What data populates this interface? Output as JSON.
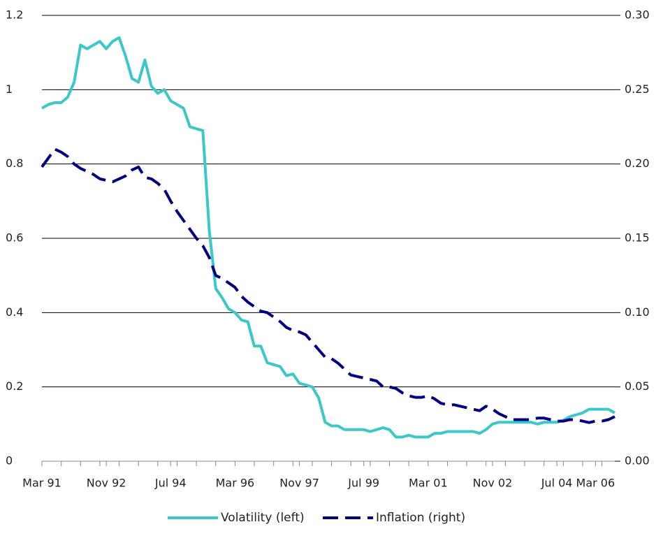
{
  "chart_data": {
    "type": "line",
    "categories": [
      "Mar 91",
      null,
      null,
      null,
      null,
      null,
      null,
      null,
      null,
      null,
      "Nov 92",
      null,
      null,
      null,
      null,
      null,
      null,
      null,
      null,
      null,
      "Jul 94",
      null,
      null,
      null,
      null,
      null,
      null,
      null,
      null,
      null,
      "Mar 96",
      null,
      null,
      null,
      null,
      null,
      null,
      null,
      null,
      null,
      "Nov 97",
      null,
      null,
      null,
      null,
      null,
      null,
      null,
      null,
      null,
      "Jul 99",
      null,
      null,
      null,
      null,
      null,
      null,
      null,
      null,
      null,
      "Mar 01",
      null,
      null,
      null,
      null,
      null,
      null,
      null,
      null,
      null,
      "Nov 02",
      null,
      null,
      null,
      null,
      null,
      null,
      null,
      null,
      null,
      "Jul 04",
      null,
      null,
      null,
      null,
      null,
      "Mar 06",
      null,
      null,
      null
    ],
    "series": [
      {
        "name": "Volatility (left)",
        "color": "#3cc8c8",
        "values": [
          0.95,
          0.96,
          0.965,
          0.965,
          0.98,
          1.02,
          1.12,
          1.11,
          1.12,
          1.13,
          1.11,
          1.13,
          1.14,
          1.09,
          1.03,
          1.02,
          1.08,
          1.01,
          0.99,
          1.0,
          0.97,
          0.96,
          0.95,
          0.9,
          0.895,
          0.89,
          0.62,
          0.465,
          0.44,
          0.41,
          0.4,
          0.38,
          0.375,
          0.31,
          0.31,
          0.265,
          0.26,
          0.255,
          0.23,
          0.235,
          0.21,
          0.205,
          0.2,
          0.17,
          0.105,
          0.095,
          0.095,
          0.085,
          0.085,
          0.085,
          0.085,
          0.08,
          0.085,
          0.09,
          0.085,
          0.065,
          0.065,
          0.07,
          0.065,
          0.065,
          0.065,
          0.075,
          0.075,
          0.08,
          0.08,
          0.08,
          0.08,
          0.08,
          0.075,
          0.085,
          0.1,
          0.105,
          0.105,
          0.105,
          0.105,
          0.105,
          0.105,
          0.1,
          0.105,
          0.105,
          0.105,
          0.11,
          0.12,
          0.125,
          0.13,
          0.14,
          0.14,
          0.14,
          0.14,
          0.13
        ]
      },
      {
        "name": "Inflation (right)",
        "color": "#000080",
        "axis": "y2",
        "dashed": true,
        "values": [
          0.198,
          0.204,
          0.21,
          0.208,
          0.205,
          0.2,
          0.197,
          0.195,
          0.193,
          0.19,
          0.189,
          0.188,
          0.19,
          0.192,
          0.196,
          0.198,
          0.191,
          0.19,
          0.187,
          0.183,
          0.175,
          0.168,
          0.162,
          0.156,
          0.15,
          0.145,
          0.137,
          0.125,
          0.123,
          0.12,
          0.117,
          0.111,
          0.107,
          0.104,
          0.101,
          0.1,
          0.097,
          0.094,
          0.09,
          0.088,
          0.087,
          0.085,
          0.08,
          0.075,
          0.07,
          0.069,
          0.066,
          0.062,
          0.058,
          0.057,
          0.056,
          0.055,
          0.054,
          0.05,
          0.05,
          0.049,
          0.046,
          0.044,
          0.043,
          0.043,
          0.044,
          0.042,
          0.039,
          0.038,
          0.038,
          0.037,
          0.036,
          0.035,
          0.034,
          0.037,
          0.035,
          0.032,
          0.03,
          0.028,
          0.028,
          0.028,
          0.028,
          0.029,
          0.029,
          0.028,
          0.027,
          0.027,
          0.028,
          0.028,
          0.027,
          0.026,
          0.027,
          0.027,
          0.028,
          0.03
        ]
      }
    ],
    "ylim": [
      0,
      1.2
    ],
    "yticks": [
      0,
      0.2,
      0.4,
      0.6,
      0.8,
      1,
      1.2
    ],
    "y2lim": [
      0,
      0.3
    ],
    "y2ticks": [
      {
        "value": 0,
        "label": "0.00"
      },
      {
        "value": 0.05,
        "label": "0.05"
      },
      {
        "value": 0.1,
        "label": "0.10"
      },
      {
        "value": 0.15,
        "label": "0.15"
      },
      {
        "value": 0.2,
        "label": "0.20"
      },
      {
        "value": 0.25,
        "label": "0.25"
      },
      {
        "value": 0.3,
        "label": "0.30"
      }
    ],
    "grid": true,
    "legend": "bottom"
  }
}
